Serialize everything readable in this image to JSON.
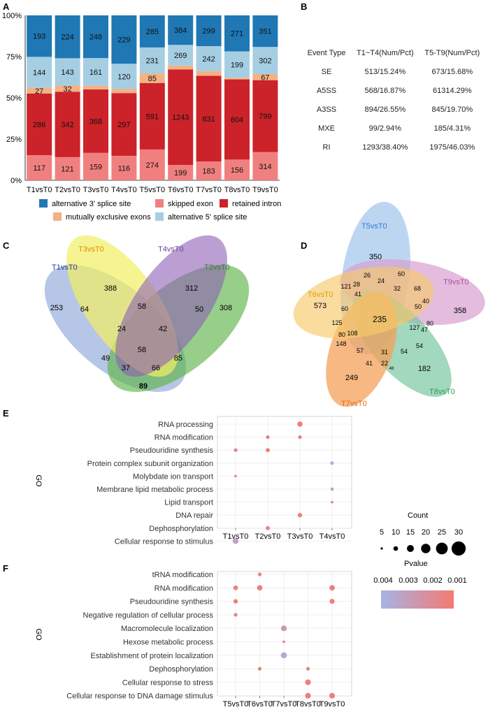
{
  "panels": {
    "A": "A",
    "B": "B",
    "C": "C",
    "D": "D",
    "E": "E",
    "F": "F"
  },
  "colors": {
    "alt3": "#1f78b4",
    "alt5": "#a6cee3",
    "mxe": "#f4b183",
    "retained": "#cc2229",
    "skipped": "#f08080"
  },
  "chart_data": [
    {
      "id": "A",
      "type": "bar",
      "stacked": true,
      "percent": true,
      "categories": [
        "T1vsT0",
        "T2vsT0",
        "T3vsT0",
        "T4vsT0",
        "T5vsT0",
        "T6vsT0",
        "T7vsT0",
        "T8vsT0",
        "T9vsT0"
      ],
      "series": [
        {
          "key": "skipped",
          "name": "skipped exon",
          "values": [
            117,
            121,
            159,
            116,
            274,
            199,
            183,
            156,
            314
          ]
        },
        {
          "key": "retained",
          "name": "retained intron",
          "values": [
            286,
            342,
            368,
            297,
            591,
            1243,
            831,
            604,
            799
          ]
        },
        {
          "key": "mxe",
          "name": "mutually exclusive exons",
          "values": [
            27,
            32,
            21,
            19,
            85,
            49,
            46,
            12,
            67
          ]
        },
        {
          "key": "alt5",
          "name": "alternative 5' splice site",
          "values": [
            144,
            143,
            161,
            120,
            231,
            269,
            242,
            199,
            302
          ]
        },
        {
          "key": "alt3",
          "name": "alternative 3' splice site",
          "values": [
            193,
            224,
            248,
            229,
            285,
            384,
            299,
            271,
            351
          ]
        }
      ],
      "yticks": [
        "0%",
        "25%",
        "50%",
        "75%",
        "100%"
      ],
      "legend_order": [
        "alt3",
        "skipped",
        "retained",
        "mxe",
        "alt5"
      ]
    },
    {
      "id": "B",
      "type": "table",
      "header": [
        "Event Type",
        "T1~T4(Num/Pct)",
        "T5-T9(Num/Pct)"
      ],
      "rows": [
        [
          "SE",
          "513/15.24%",
          "673/15.68%"
        ],
        [
          "A5SS",
          "568/16.87%",
          "61314.29%"
        ],
        [
          "A3SS",
          "894/26.55%",
          "845/19.70%"
        ],
        [
          "MXE",
          "99/2.94%",
          "185/4.31%"
        ],
        [
          "RI",
          "1293/38.40%",
          "1975/46.03%"
        ]
      ]
    },
    {
      "id": "C",
      "type": "venn",
      "sets": [
        "T1vsT0",
        "T3vsT0",
        "T4vsT0",
        "T2vsT0"
      ],
      "regions": [
        "253",
        "388",
        "312",
        "308",
        "64",
        "58",
        "50",
        "24",
        "42",
        "58",
        "49",
        "37",
        "66",
        "85",
        "89"
      ]
    },
    {
      "id": "D",
      "type": "venn",
      "sets": [
        "T5vsT0",
        "T9vsT0",
        "T8vsT0",
        "T7vsT0",
        "T6vsT0"
      ],
      "regions": [
        "350",
        "358",
        "182",
        "249",
        "573",
        "60",
        "26",
        "24",
        "68",
        "40",
        "121",
        "28",
        "41",
        "32",
        "50",
        "80",
        "127",
        "47",
        "54",
        "54",
        "31",
        "22",
        "48",
        "41",
        "57",
        "148",
        "80",
        "108",
        "125",
        "60",
        "235"
      ]
    },
    {
      "id": "E",
      "type": "scatter",
      "ylabel": "GO",
      "categories": [
        "T1vsT0",
        "T2vsT0",
        "T3vsT0",
        "T4vsT0"
      ],
      "terms": [
        "RNA processing",
        "RNA modification",
        "Pseudouridine synthesis",
        "Protein complex subunit organization",
        "Molybdate ion transport",
        "Membrane lipid metabolic process",
        "Lipid transport",
        "DNA repair",
        "Dephosphorylation",
        "Cellular response to stimulus"
      ],
      "points": [
        {
          "term": 0,
          "x": 2,
          "count": 8,
          "p": 0.0009
        },
        {
          "term": 1,
          "x": 1,
          "count": 3,
          "p": 0.0012
        },
        {
          "term": 1,
          "x": 2,
          "count": 3,
          "p": 0.0012
        },
        {
          "term": 2,
          "x": 0,
          "count": 3,
          "p": 0.0015
        },
        {
          "term": 2,
          "x": 1,
          "count": 4,
          "p": 0.0011
        },
        {
          "term": 3,
          "x": 3,
          "count": 3,
          "p": 0.004
        },
        {
          "term": 4,
          "x": 0,
          "count": 1,
          "p": 0.0018
        },
        {
          "term": 5,
          "x": 3,
          "count": 2,
          "p": 0.003
        },
        {
          "term": 6,
          "x": 3,
          "count": 1,
          "p": 0.002
        },
        {
          "term": 7,
          "x": 2,
          "count": 5,
          "p": 0.0011
        },
        {
          "term": 8,
          "x": 1,
          "count": 4,
          "p": 0.0012
        },
        {
          "term": 9,
          "x": 0,
          "count": 10,
          "p": 0.0032
        }
      ]
    },
    {
      "id": "F",
      "type": "scatter",
      "ylabel": "GO",
      "categories": [
        "T5vsT0",
        "T6vsT0",
        "T7vsT0",
        "T8vsT0",
        "T9vsT0"
      ],
      "terms": [
        "tRNA modification",
        "RNA modification",
        "Pseudouridine synthesis",
        "Negative regulation of cellular process",
        "Macromolecule localization",
        "Hexose metabolic process",
        "Establishment of protein localization",
        "Dephosphorylation",
        "Cellular response to stress",
        "Cellular response to DNA damage stimulus"
      ],
      "points": [
        {
          "term": 0,
          "x": 1,
          "count": 3,
          "p": 0.0012
        },
        {
          "term": 1,
          "x": 0,
          "count": 6,
          "p": 0.0011
        },
        {
          "term": 1,
          "x": 1,
          "count": 9,
          "p": 0.0012
        },
        {
          "term": 1,
          "x": 4,
          "count": 9,
          "p": 0.0011
        },
        {
          "term": 2,
          "x": 0,
          "count": 5,
          "p": 0.0011
        },
        {
          "term": 2,
          "x": 4,
          "count": 7,
          "p": 0.0011
        },
        {
          "term": 3,
          "x": 0,
          "count": 3,
          "p": 0.0012
        },
        {
          "term": 4,
          "x": 2,
          "count": 10,
          "p": 0.0025
        },
        {
          "term": 5,
          "x": 2,
          "count": 1,
          "p": 0.0015
        },
        {
          "term": 6,
          "x": 2,
          "count": 12,
          "p": 0.0037
        },
        {
          "term": 7,
          "x": 1,
          "count": 3,
          "p": 0.0012
        },
        {
          "term": 7,
          "x": 3,
          "count": 3,
          "p": 0.0012
        },
        {
          "term": 8,
          "x": 3,
          "count": 10,
          "p": 0.0011
        },
        {
          "term": 9,
          "x": 3,
          "count": 10,
          "p": 0.0011
        },
        {
          "term": 9,
          "x": 4,
          "count": 10,
          "p": 0.0011
        }
      ]
    }
  ],
  "legend_ef": {
    "count_title": "Count",
    "count_values": [
      "5",
      "10",
      "15",
      "20",
      "25",
      "30"
    ],
    "pvalue_title": "Pvalue",
    "pvalue_ticks": [
      "0.004",
      "0.003",
      "0.002",
      "0.001"
    ]
  }
}
